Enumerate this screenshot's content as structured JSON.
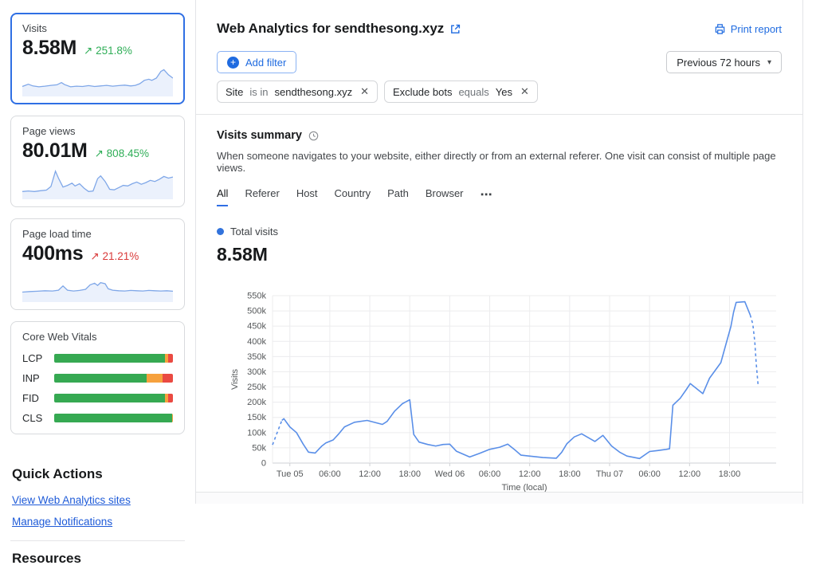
{
  "icons": {
    "trend_up": "↗",
    "close": "✕",
    "caret_down": "▾",
    "more_tabs": "⋯",
    "plus": "+"
  },
  "colors": {
    "accent_blue": "#1f6be0",
    "chart_line": "#5a8fe8",
    "spark_line": "#7fa7e8",
    "spark_fill": "#e7effc",
    "positive_green": "#2fae57",
    "negative_red": "#d93a3a",
    "cwv_green": "#36a952",
    "cwv_orange": "#f6a13d",
    "cwv_red": "#ea4a42",
    "grid": "#ececee",
    "axis": "#cfd1d4",
    "tick_text": "#55585a"
  },
  "sidebar": {
    "cards": [
      {
        "label": "Visits",
        "value": "8.58M",
        "change": "251.8%",
        "direction": "up",
        "sentiment": "positive",
        "sparkline": [
          [
            0,
            30
          ],
          [
            4,
            38
          ],
          [
            7,
            32
          ],
          [
            11,
            29
          ],
          [
            15,
            31
          ],
          [
            19,
            34
          ],
          [
            23,
            36
          ],
          [
            26,
            44
          ],
          [
            28,
            37
          ],
          [
            32,
            29
          ],
          [
            36,
            31
          ],
          [
            40,
            30
          ],
          [
            44,
            33
          ],
          [
            48,
            30
          ],
          [
            52,
            32
          ],
          [
            56,
            34
          ],
          [
            60,
            31
          ],
          [
            64,
            33
          ],
          [
            68,
            35
          ],
          [
            72,
            32
          ],
          [
            75,
            34
          ],
          [
            78,
            40
          ],
          [
            81,
            52
          ],
          [
            84,
            56
          ],
          [
            86,
            52
          ],
          [
            89,
            60
          ],
          [
            92,
            84
          ],
          [
            94,
            90
          ],
          [
            97,
            72
          ],
          [
            100,
            60
          ]
        ]
      },
      {
        "label": "Page views",
        "value": "80.01M",
        "change": "808.45%",
        "direction": "up",
        "sentiment": "positive",
        "sparkline": [
          [
            0,
            22
          ],
          [
            4,
            24
          ],
          [
            8,
            22
          ],
          [
            12,
            25
          ],
          [
            16,
            27
          ],
          [
            19,
            40
          ],
          [
            22,
            95
          ],
          [
            24,
            70
          ],
          [
            27,
            38
          ],
          [
            30,
            44
          ],
          [
            33,
            52
          ],
          [
            35,
            42
          ],
          [
            38,
            50
          ],
          [
            41,
            34
          ],
          [
            44,
            22
          ],
          [
            47,
            24
          ],
          [
            50,
            68
          ],
          [
            52,
            78
          ],
          [
            55,
            58
          ],
          [
            58,
            30
          ],
          [
            61,
            28
          ],
          [
            64,
            36
          ],
          [
            67,
            44
          ],
          [
            70,
            42
          ],
          [
            73,
            50
          ],
          [
            76,
            56
          ],
          [
            79,
            48
          ],
          [
            82,
            54
          ],
          [
            85,
            62
          ],
          [
            88,
            58
          ],
          [
            91,
            66
          ],
          [
            94,
            76
          ],
          [
            97,
            70
          ],
          [
            100,
            74
          ]
        ]
      },
      {
        "label": "Page load time",
        "value": "400ms",
        "change": "21.21%",
        "direction": "up",
        "sentiment": "negative",
        "sparkline": [
          [
            0,
            30
          ],
          [
            5,
            32
          ],
          [
            10,
            33
          ],
          [
            15,
            35
          ],
          [
            20,
            34
          ],
          [
            24,
            37
          ],
          [
            27,
            52
          ],
          [
            30,
            37
          ],
          [
            34,
            34
          ],
          [
            38,
            36
          ],
          [
            42,
            40
          ],
          [
            45,
            56
          ],
          [
            48,
            62
          ],
          [
            50,
            54
          ],
          [
            52,
            64
          ],
          [
            55,
            60
          ],
          [
            57,
            42
          ],
          [
            60,
            37
          ],
          [
            64,
            35
          ],
          [
            68,
            34
          ],
          [
            72,
            36
          ],
          [
            76,
            35
          ],
          [
            80,
            34
          ],
          [
            84,
            36
          ],
          [
            88,
            35
          ],
          [
            92,
            34
          ],
          [
            96,
            35
          ],
          [
            100,
            33
          ]
        ]
      }
    ],
    "core_web_vitals": {
      "title": "Core Web Vitals",
      "rows": [
        {
          "label": "LCP",
          "green_pct": 93.5,
          "orange_pct": 2.5,
          "red_pct": 4
        },
        {
          "label": "INP",
          "green_pct": 78,
          "orange_pct": 13,
          "red_pct": 9
        },
        {
          "label": "FID",
          "green_pct": 93,
          "orange_pct": 3,
          "red_pct": 4
        },
        {
          "label": "CLS",
          "green_pct": 99,
          "orange_pct": 1,
          "red_pct": 0
        }
      ]
    },
    "quick_actions": {
      "title": "Quick Actions",
      "links": [
        {
          "label": "View Web Analytics sites"
        },
        {
          "label": "Manage Notifications"
        }
      ]
    },
    "resources": {
      "title": "Resources"
    }
  },
  "header": {
    "title": "Web Analytics for sendthesong.xyz",
    "print_label": "Print report",
    "add_filter_label": "Add filter",
    "time_range_label": "Previous 72 hours",
    "filters": [
      {
        "field": "Site",
        "operator": "is in",
        "value": "sendthesong.xyz"
      },
      {
        "field": "Exclude bots",
        "operator": "equals",
        "value": "Yes"
      }
    ]
  },
  "summary": {
    "title": "Visits summary",
    "description": "When someone navigates to your website, either directly or from an external referer. One visit can consist of multiple page views.",
    "tabs": [
      "All",
      "Referer",
      "Host",
      "Country",
      "Path",
      "Browser"
    ],
    "active_tab": "All",
    "legend_label": "Total visits",
    "total_label": "8.58M"
  },
  "chart_data": {
    "type": "line",
    "series_name": "Total visits",
    "value_unit": "thousands of visits",
    "xlabel": "Time (local)",
    "ylabel": "Visits",
    "grid": true,
    "x_domain_hours_from_tue05": [
      -2.6,
      73
    ],
    "y_domain_thousands": [
      0,
      550
    ],
    "y_tick_labels": [
      "0",
      "50k",
      "100k",
      "150k",
      "200k",
      "250k",
      "300k",
      "350k",
      "400k",
      "450k",
      "500k",
      "550k"
    ],
    "x_ticks": [
      {
        "hour": 0,
        "label": "Tue 05"
      },
      {
        "hour": 6,
        "label": "06:00"
      },
      {
        "hour": 12,
        "label": "12:00"
      },
      {
        "hour": 18,
        "label": "18:00"
      },
      {
        "hour": 24,
        "label": "Wed 06"
      },
      {
        "hour": 30,
        "label": "06:00"
      },
      {
        "hour": 36,
        "label": "12:00"
      },
      {
        "hour": 42,
        "label": "18:00"
      },
      {
        "hour": 48,
        "label": "Thu 07"
      },
      {
        "hour": 54,
        "label": "06:00"
      },
      {
        "hour": 60,
        "label": "12:00"
      },
      {
        "hour": 66,
        "label": "18:00"
      }
    ],
    "points_hour_valueK": {
      "lead_dashed": [
        [
          -2.6,
          60
        ],
        [
          -1.2,
          140
        ]
      ],
      "solid": [
        [
          -1.2,
          140
        ],
        [
          -0.9,
          146
        ],
        [
          0,
          119
        ],
        [
          1,
          100
        ],
        [
          2,
          62
        ],
        [
          2.8,
          36
        ],
        [
          3.8,
          33
        ],
        [
          4.8,
          56
        ],
        [
          5.4,
          66
        ],
        [
          6.5,
          76
        ],
        [
          7.3,
          95
        ],
        [
          8.2,
          119
        ],
        [
          9.7,
          134
        ],
        [
          11.6,
          140
        ],
        [
          13.9,
          127
        ],
        [
          14.6,
          137
        ],
        [
          15.7,
          170
        ],
        [
          16.9,
          195
        ],
        [
          18,
          208
        ],
        [
          18.6,
          94
        ],
        [
          19.4,
          69
        ],
        [
          20.7,
          61
        ],
        [
          21.9,
          56
        ],
        [
          23,
          61
        ],
        [
          24,
          62
        ],
        [
          25,
          39
        ],
        [
          27,
          20
        ],
        [
          28.5,
          32
        ],
        [
          30,
          45
        ],
        [
          31.5,
          52
        ],
        [
          32.7,
          62
        ],
        [
          33.9,
          41
        ],
        [
          34.7,
          26
        ],
        [
          35.9,
          23
        ],
        [
          38,
          18
        ],
        [
          40,
          16
        ],
        [
          40.8,
          35
        ],
        [
          41.6,
          64
        ],
        [
          42.7,
          86
        ],
        [
          43.8,
          96
        ],
        [
          45.8,
          71
        ],
        [
          47,
          91
        ],
        [
          48.3,
          56
        ],
        [
          49.5,
          36
        ],
        [
          50.6,
          23
        ],
        [
          52.5,
          15
        ],
        [
          54,
          38
        ],
        [
          55.2,
          41
        ],
        [
          56.5,
          45
        ],
        [
          57,
          47
        ],
        [
          57.5,
          190
        ],
        [
          58.6,
          213
        ],
        [
          59.5,
          241
        ],
        [
          60.1,
          261
        ],
        [
          62,
          228
        ],
        [
          63,
          279
        ],
        [
          64.7,
          330
        ],
        [
          65.4,
          386
        ],
        [
          66.2,
          449
        ],
        [
          66.6,
          495
        ],
        [
          67,
          528
        ],
        [
          68.3,
          530
        ],
        [
          69.1,
          487
        ]
      ],
      "tail_dashed": [
        [
          69.1,
          487
        ],
        [
          69.5,
          457
        ],
        [
          69.8,
          398
        ],
        [
          70,
          330
        ],
        [
          70.3,
          254
        ]
      ]
    }
  }
}
